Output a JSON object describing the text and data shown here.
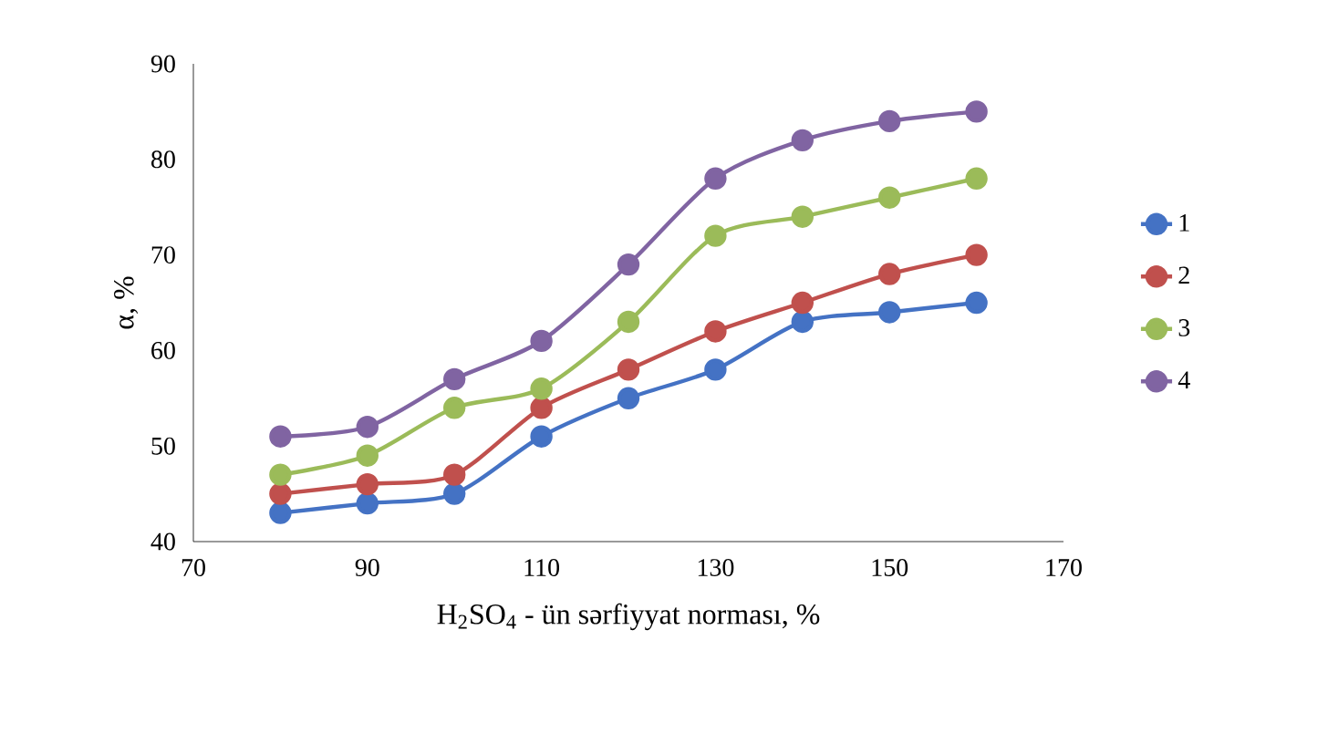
{
  "chart_data": {
    "type": "line",
    "xlabel": "H$_{2}$SO$_{4}$ - ün sərfiyyat norması, %",
    "ylabel": "α, %",
    "x": [
      80,
      90,
      100,
      110,
      120,
      130,
      140,
      150,
      160
    ],
    "series": [
      {
        "name": "1",
        "color": "#4472c4",
        "values": [
          43,
          44,
          45,
          51,
          55,
          58,
          63,
          64,
          65
        ]
      },
      {
        "name": "2",
        "color": "#c0504d",
        "values": [
          45,
          46,
          47,
          54,
          58,
          62,
          65,
          68,
          70
        ]
      },
      {
        "name": "3",
        "color": "#9bbb59",
        "values": [
          47,
          49,
          54,
          56,
          63,
          72,
          74,
          76,
          78
        ]
      },
      {
        "name": "4",
        "color": "#8064a2",
        "values": [
          51,
          52,
          57,
          61,
          69,
          78,
          82,
          84,
          85
        ]
      }
    ],
    "xlim": [
      70,
      170
    ],
    "xticks": [
      70,
      90,
      110,
      130,
      150,
      170
    ],
    "ylim": [
      40,
      90
    ],
    "yticks": [
      40,
      50,
      60,
      70,
      80,
      90
    ],
    "grid": false,
    "legend": "right",
    "marker": "circle",
    "line_style": "solid"
  }
}
